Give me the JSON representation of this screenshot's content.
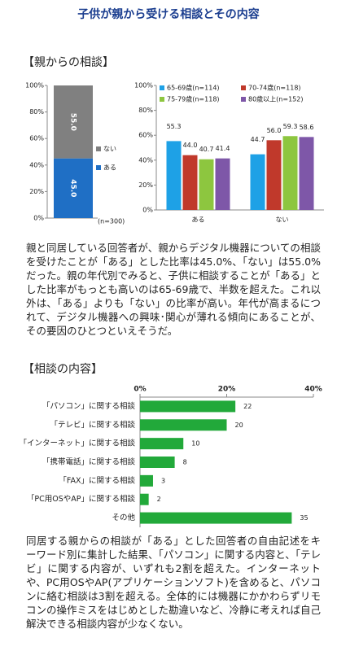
{
  "title": "子供が親から受ける相談とその内容",
  "section1": {
    "heading": "【親からの相談】",
    "text": "親と同居している回答者が、親からデジタル機器についての相談を受けたことが「ある」とした比率は45.0%、「ない」は55.0%だった。親の年代別でみると、子供に相談することが「ある」とした比率がもっとも高いのは65-69歳で、半数を超えた。これ以外は、「ある」よりも「ない」の比率が高い。年代が高まるにつれて、デジタル機器への興味･関心が薄れる傾向にあることが、その要因のひとつといえそうだ。"
  },
  "section2": {
    "heading": "【相談の内容】",
    "text": "同居する親からの相談が「ある」とした回答者の自由記述をキーワード別に集計した結果、「パソコン」に関する内容と、「テレビ」に関する内容が、いずれも2割を超えた。インターネットや、PC用OSやAP(アプリケーションソフト)を含めると、パソコンに絡む相談は3割を超える。全体的には機器にかかわらずリモコンの操作ミスをはじめとした勘違いなど、冷静に考えれば自己解決できる相談内容が少なくない。"
  },
  "chart_data": [
    {
      "type": "stacked",
      "note": "(n=300)",
      "ylim": [
        0,
        100
      ],
      "yticks": [
        {
          "value": 0,
          "label": "0%"
        },
        {
          "value": 20,
          "label": "20%"
        },
        {
          "value": 40,
          "label": "40%"
        },
        {
          "value": 60,
          "label": "60%"
        },
        {
          "value": 80,
          "label": "80%"
        },
        {
          "value": 100,
          "label": "100%"
        }
      ],
      "series": [
        {
          "name": "ある",
          "color": "#1f6fc5",
          "values": [
            45.0
          ],
          "value_labels": [
            "45.0"
          ]
        },
        {
          "name": "ない",
          "color": "#808080",
          "values": [
            55.0
          ],
          "value_labels": [
            "55.0"
          ]
        }
      ]
    },
    {
      "type": "grouped",
      "categories": [
        "ある",
        "ない"
      ],
      "ylim": [
        0,
        100
      ],
      "yticks": [
        {
          "value": 0,
          "label": "0%"
        },
        {
          "value": 20,
          "label": "20%"
        },
        {
          "value": 40,
          "label": "40%"
        },
        {
          "value": 60,
          "label": "60%"
        },
        {
          "value": 80,
          "label": "80%"
        },
        {
          "value": 100,
          "label": "100%"
        }
      ],
      "series": [
        {
          "name": "65-69歳(n=114)",
          "color": "#1ea1e6",
          "values": [
            55.3,
            44.7
          ]
        },
        {
          "name": "70-74歳(n=118)",
          "color": "#c0392b",
          "values": [
            44.0,
            56.0
          ],
          "value_labels": [
            "44.0",
            "56.0"
          ]
        },
        {
          "name": "75-79歳(n=118)",
          "color": "#8dc63f",
          "values": [
            40.7,
            59.3
          ]
        },
        {
          "name": "80歳以上(n=152)",
          "color": "#7e57a8",
          "values": [
            41.4,
            58.6
          ]
        }
      ]
    },
    {
      "type": "barh",
      "color": "#22a93a",
      "xlim": [
        0,
        40
      ],
      "xticks": [
        {
          "value": 0,
          "label": "0%"
        },
        {
          "value": 20,
          "label": "20%"
        },
        {
          "value": 40,
          "label": "40%"
        }
      ],
      "categories": [
        "「パソコン」に関する相談",
        "「テレビ」に関する相談",
        "「インターネット」に関する相談",
        "「携帯電話」に関する相談",
        "「FAX」に関する相談",
        "「PC用OSやAP」に関する相談",
        "その他"
      ],
      "values": [
        22,
        20,
        10,
        8,
        3,
        2,
        35
      ]
    }
  ]
}
